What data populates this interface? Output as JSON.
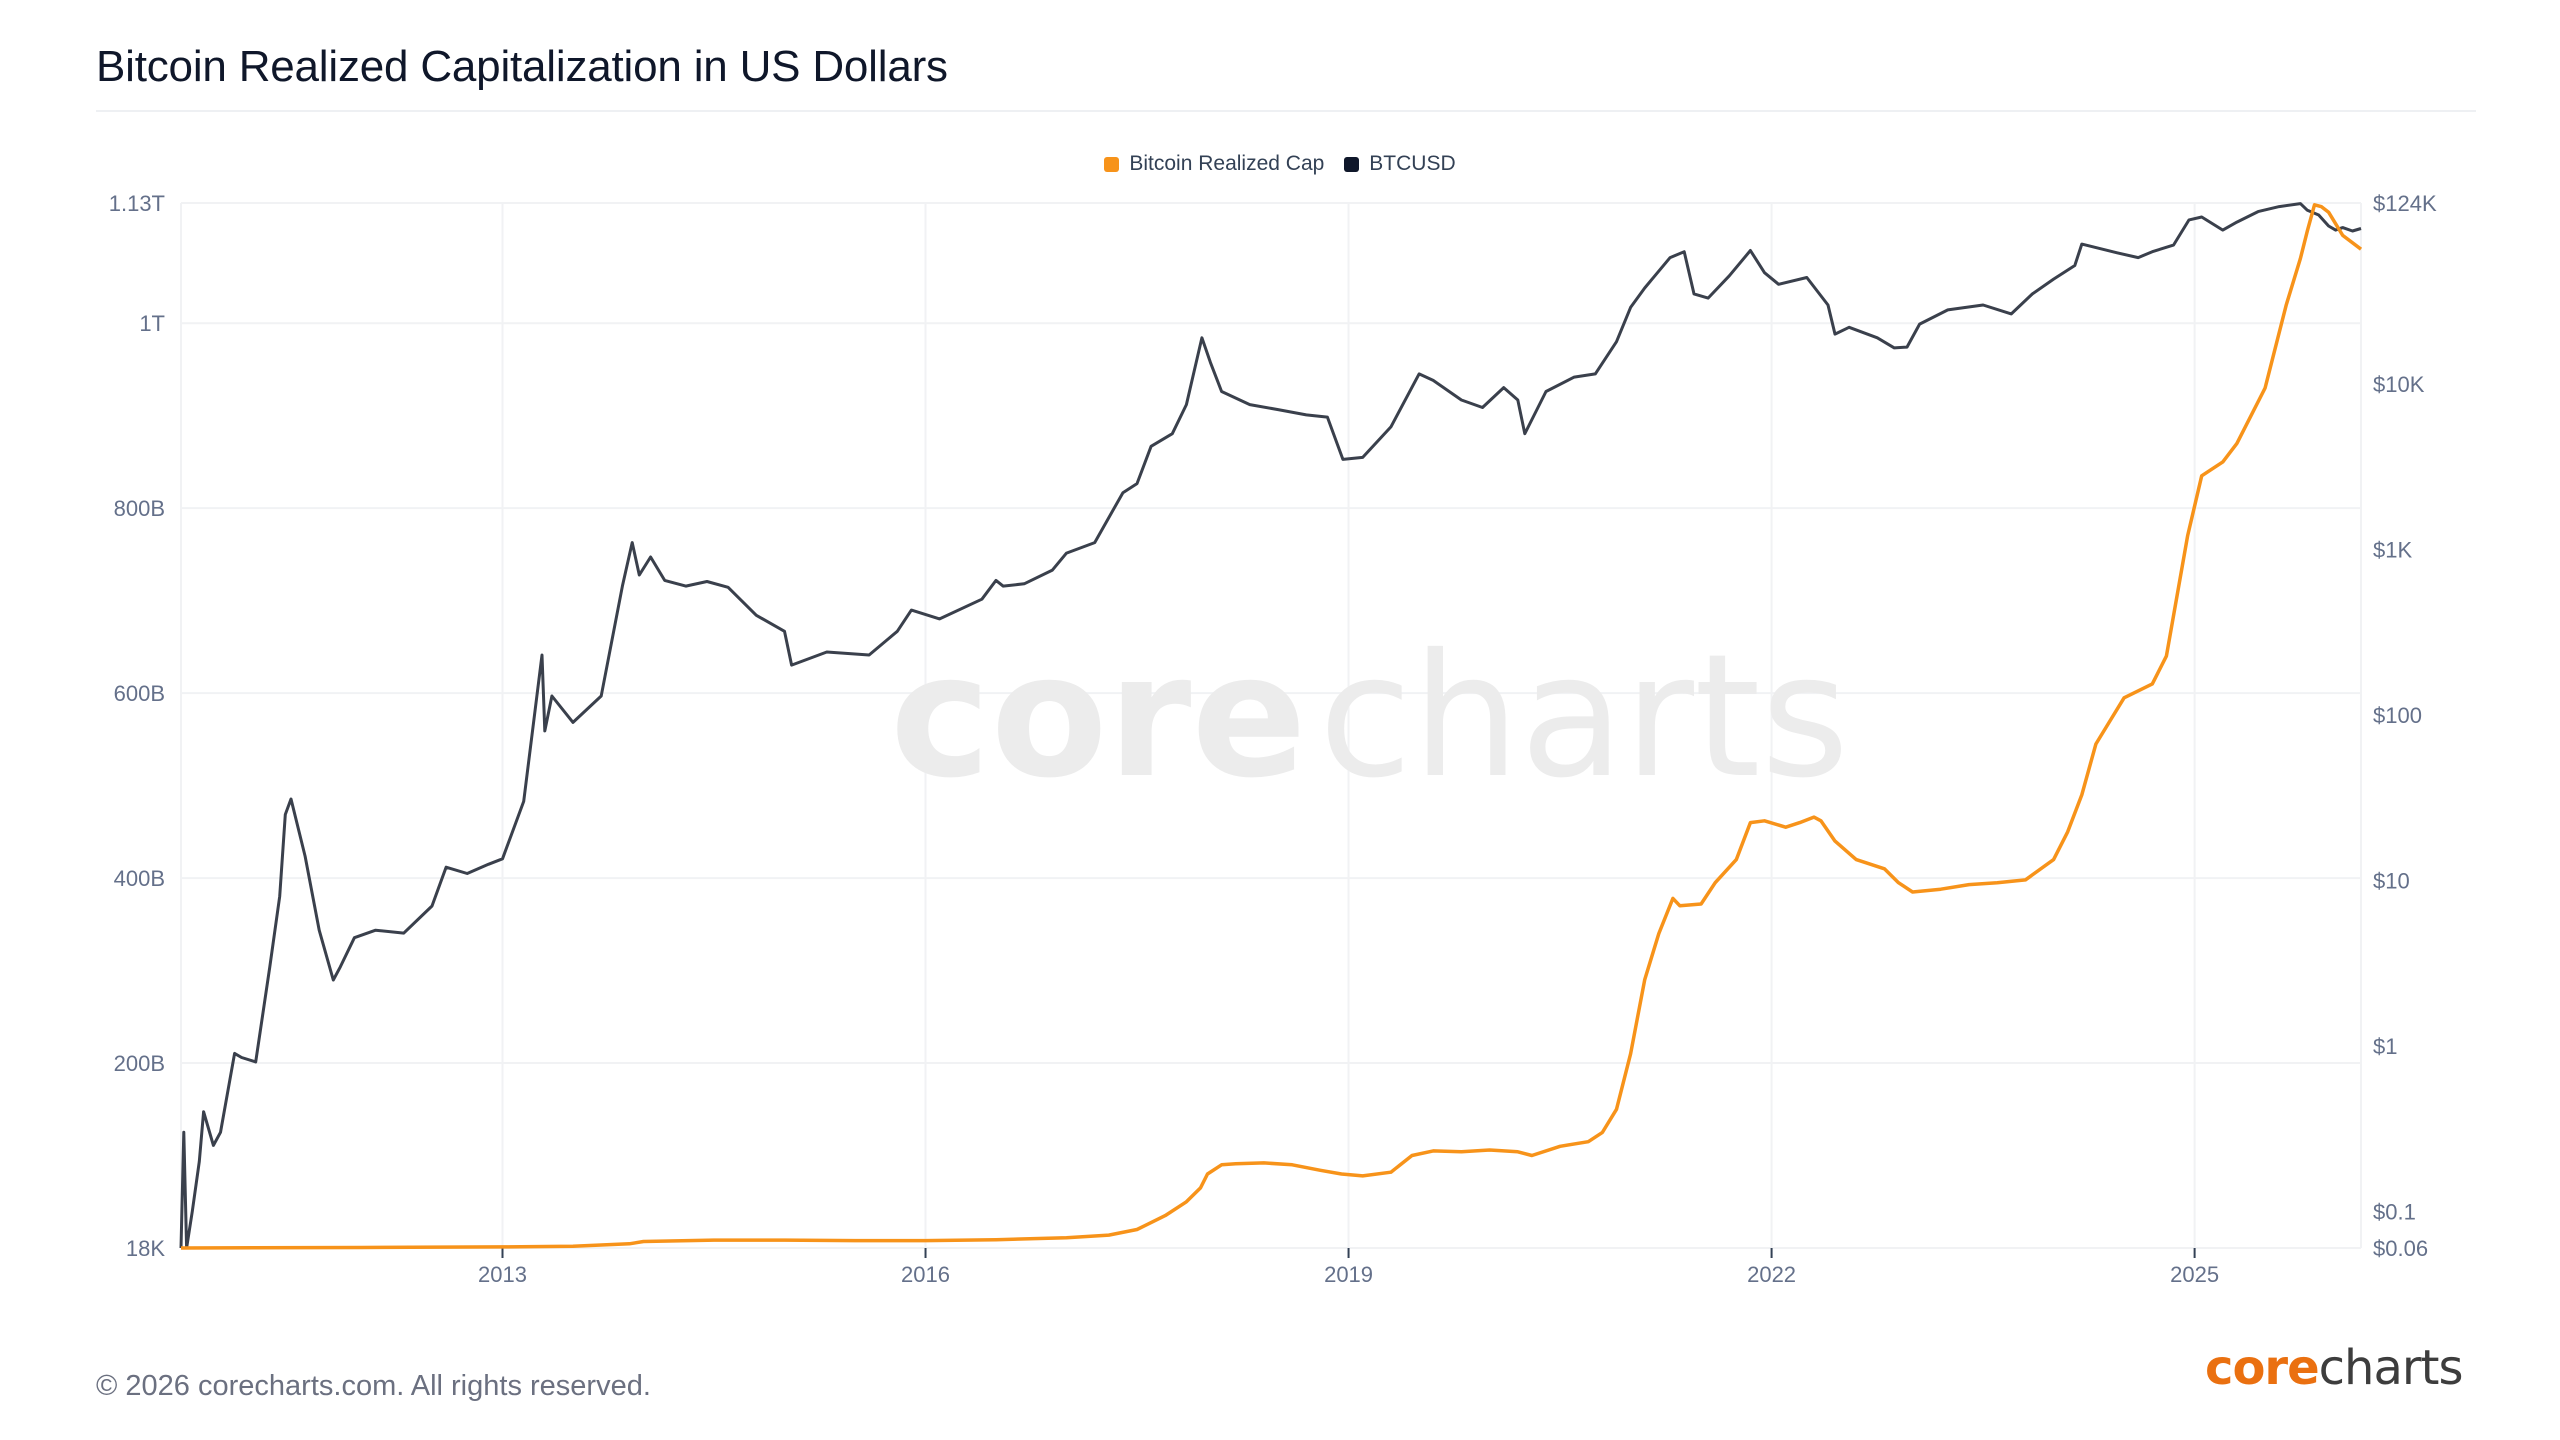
{
  "header": {
    "title": "Bitcoin Realized Capitalization in US Dollars"
  },
  "footer": {
    "copyright": "© 2026 corecharts.com. All rights reserved.",
    "logo_part1": "core",
    "logo_part2": "charts"
  },
  "watermark": {
    "part1": "core",
    "part2": "charts"
  },
  "colors": {
    "realized_cap": "#f7931a",
    "btcusd": "#3a404c",
    "legend_btcusd": "#0f172a",
    "grid": "#f1f2f4",
    "axis_text": "#64708a"
  },
  "chart_data": {
    "type": "line",
    "title": "Bitcoin Realized Capitalization in US Dollars",
    "legend_position": "top-center",
    "grid": true,
    "x_axis": {
      "ticks": [
        "2013",
        "2016",
        "2019",
        "2022",
        "2025"
      ],
      "range": [
        2010.72,
        2026.18
      ]
    },
    "y_left": {
      "scale": "linear",
      "range": [
        0,
        1130000000000
      ],
      "ticks": [
        {
          "value": 18000,
          "label": "18K"
        },
        {
          "value": 200000000000,
          "label": "200B"
        },
        {
          "value": 400000000000,
          "label": "400B"
        },
        {
          "value": 600000000000,
          "label": "600B"
        },
        {
          "value": 800000000000,
          "label": "800B"
        },
        {
          "value": 1000000000000,
          "label": "1T"
        },
        {
          "value": 1130000000000,
          "label": "1.13T"
        }
      ]
    },
    "y_right": {
      "scale": "log",
      "range": [
        0.06,
        124000
      ],
      "ticks": [
        {
          "value": 0.06,
          "label": "$0.06"
        },
        {
          "value": 0.1,
          "label": "$0.1"
        },
        {
          "value": 1,
          "label": "$1"
        },
        {
          "value": 10,
          "label": "$10"
        },
        {
          "value": 100,
          "label": "$100"
        },
        {
          "value": 1000,
          "label": "$1K"
        },
        {
          "value": 10000,
          "label": "$10K"
        },
        {
          "value": 124000,
          "label": "$124K"
        }
      ]
    },
    "series": [
      {
        "name": "Bitcoin Realized Cap",
        "axis": "left",
        "unit": "USD",
        "x": [
          2010.72,
          2012.0,
          2013.0,
          2013.5,
          2013.9,
          2014.0,
          2014.5,
          2015.0,
          2015.5,
          2016.0,
          2016.5,
          2017.0,
          2017.3,
          2017.5,
          2017.7,
          2017.85,
          2017.95,
          2018.0,
          2018.1,
          2018.2,
          2018.4,
          2018.6,
          2018.8,
          2018.95,
          2019.1,
          2019.3,
          2019.45,
          2019.6,
          2019.8,
          2020.0,
          2020.2,
          2020.3,
          2020.5,
          2020.7,
          2020.8,
          2020.9,
          2021.0,
          2021.1,
          2021.2,
          2021.3,
          2021.35,
          2021.5,
          2021.6,
          2021.75,
          2021.85,
          2021.95,
          2022.1,
          2022.2,
          2022.3,
          2022.35,
          2022.45,
          2022.6,
          2022.8,
          2022.9,
          2023.0,
          2023.2,
          2023.4,
          2023.6,
          2023.8,
          2024.0,
          2024.1,
          2024.2,
          2024.3,
          2024.4,
          2024.5,
          2024.7,
          2024.8,
          2024.95,
          2025.05,
          2025.2,
          2025.3,
          2025.5,
          2025.65,
          2025.75,
          2025.8,
          2025.85,
          2025.9,
          2025.95,
          2026.05,
          2026.18
        ],
        "values": [
          18000,
          500000000,
          1200000000,
          2000000000,
          4500000000,
          7000000000,
          8500000000,
          8500000000,
          8000000000,
          8000000000,
          9000000000,
          11000000000,
          14000000000,
          20000000000,
          35000000000,
          50000000000,
          65000000000,
          80000000000,
          90000000000,
          91000000000,
          92000000000,
          90000000000,
          84000000000,
          80000000000,
          78000000000,
          82000000000,
          100000000000,
          105000000000,
          104000000000,
          106000000000,
          104000000000,
          100000000000,
          110000000000,
          115000000000,
          125000000000,
          150000000000,
          210000000000,
          290000000000,
          340000000000,
          378000000000,
          370000000000,
          372000000000,
          395000000000,
          420000000000,
          460000000000,
          462000000000,
          455000000000,
          460000000000,
          466000000000,
          462000000000,
          440000000000,
          420000000000,
          410000000000,
          395000000000,
          385000000000,
          388000000000,
          393000000000,
          395000000000,
          398000000000,
          420000000000,
          450000000000,
          490000000000,
          545000000000,
          570000000000,
          595000000000,
          610000000000,
          640000000000,
          770000000000,
          835000000000,
          850000000000,
          870000000000,
          930000000000,
          1020000000000,
          1070000000000,
          1100000000000,
          1128000000000,
          1126000000000,
          1120000000000,
          1095000000000,
          1080000000000
        ]
      },
      {
        "name": "BTCUSD",
        "axis": "right",
        "unit": "USD",
        "x": [
          2010.72,
          2010.74,
          2010.76,
          2010.8,
          2010.85,
          2010.88,
          2010.95,
          2011.0,
          2011.1,
          2011.15,
          2011.25,
          2011.35,
          2011.42,
          2011.46,
          2011.5,
          2011.6,
          2011.7,
          2011.8,
          2011.85,
          2011.95,
          2012.1,
          2012.3,
          2012.5,
          2012.6,
          2012.75,
          2012.9,
          2013.0,
          2013.15,
          2013.28,
          2013.3,
          2013.35,
          2013.5,
          2013.7,
          2013.85,
          2013.92,
          2013.97,
          2014.05,
          2014.15,
          2014.3,
          2014.45,
          2014.6,
          2014.8,
          2015.0,
          2015.05,
          2015.3,
          2015.6,
          2015.8,
          2015.9,
          2016.1,
          2016.4,
          2016.5,
          2016.55,
          2016.7,
          2016.9,
          2017.0,
          2017.2,
          2017.4,
          2017.5,
          2017.6,
          2017.75,
          2017.85,
          2017.96,
          2018.02,
          2018.1,
          2018.3,
          2018.5,
          2018.7,
          2018.85,
          2018.96,
          2019.1,
          2019.3,
          2019.5,
          2019.6,
          2019.8,
          2019.95,
          2020.1,
          2020.2,
          2020.25,
          2020.4,
          2020.6,
          2020.75,
          2020.9,
          2021.0,
          2021.1,
          2021.28,
          2021.38,
          2021.45,
          2021.55,
          2021.7,
          2021.85,
          2021.95,
          2022.05,
          2022.25,
          2022.4,
          2022.45,
          2022.55,
          2022.75,
          2022.87,
          2022.96,
          2023.05,
          2023.25,
          2023.5,
          2023.7,
          2023.85,
          2024.0,
          2024.15,
          2024.2,
          2024.45,
          2024.6,
          2024.7,
          2024.85,
          2024.96,
          2025.05,
          2025.2,
          2025.3,
          2025.45,
          2025.6,
          2025.75,
          2025.8,
          2025.88,
          2025.95,
          2026.0,
          2026.05,
          2026.12,
          2026.18
        ],
        "values": [
          0.06,
          0.3,
          0.06,
          0.1,
          0.2,
          0.4,
          0.25,
          0.3,
          0.9,
          0.85,
          0.8,
          3,
          8,
          25,
          31,
          14,
          5,
          2.5,
          3,
          4.5,
          5,
          4.8,
          7,
          12,
          11,
          12.5,
          13.5,
          30,
          230,
          80,
          130,
          90,
          130,
          600,
          1100,
          700,
          900,
          650,
          600,
          640,
          590,
          400,
          320,
          200,
          240,
          230,
          320,
          430,
          380,
          500,
          650,
          600,
          620,
          750,
          950,
          1100,
          2200,
          2500,
          4200,
          5000,
          7500,
          19000,
          13500,
          9000,
          7500,
          7000,
          6500,
          6300,
          3500,
          3600,
          5500,
          11500,
          10500,
          8000,
          7200,
          9500,
          8000,
          5000,
          9000,
          11000,
          11500,
          18000,
          29000,
          38000,
          58000,
          63000,
          35000,
          33000,
          45000,
          64000,
          47000,
          40000,
          44000,
          30000,
          20000,
          22000,
          19000,
          16500,
          16700,
          23000,
          28000,
          30000,
          26500,
          35000,
          43000,
          52000,
          70000,
          62000,
          58000,
          63000,
          69000,
          98000,
          102000,
          85000,
          95000,
          110000,
          118000,
          123000,
          112000,
          105000,
          90000,
          85000,
          88000,
          84000,
          87000
        ]
      }
    ]
  }
}
